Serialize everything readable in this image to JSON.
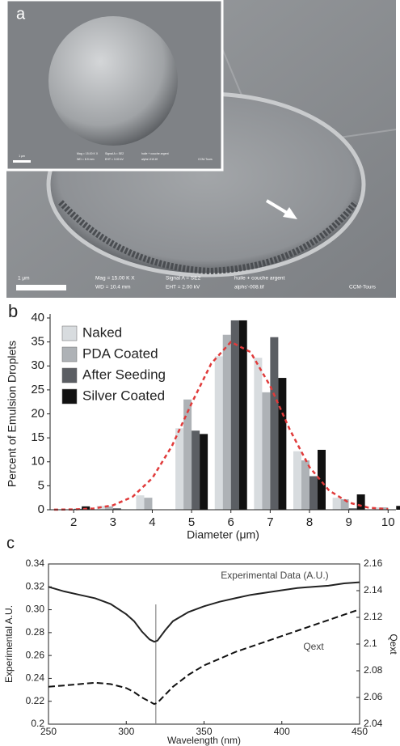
{
  "image_panel": {
    "label": "a",
    "scale_bar": "1 μm",
    "info": [
      "Mag = 15.00 K X",
      "WD = 10.4 mm",
      "Signal A = SE2",
      "EHT = 2.00 kV",
      "huile + couche argent",
      "alphs'-008.tif",
      "CCM-Tours"
    ],
    "inset": {
      "scale_bar": "1 μm",
      "info": [
        "Mag = 15.00 K X",
        "WD = 8.9 mm",
        "Signal A = SE2",
        "EHT = 3.00 kV",
        "huile + couche argent",
        "alphs'-010.tif",
        "CCM-Tours"
      ]
    }
  },
  "chart_data": [
    {
      "type": "bar",
      "label": "b",
      "ylabel": "Percent of Emulsion Droplets",
      "xlabel": "Diameter (μm)",
      "x": [
        2,
        3,
        4,
        5,
        6,
        7,
        8,
        9,
        10
      ],
      "series": [
        {
          "name": "Naked",
          "color": "#d8dcdf",
          "values": [
            0,
            0.8,
            3,
            17,
            32,
            31.7,
            12.2,
            2.5,
            0.5
          ]
        },
        {
          "name": "PDA Coated",
          "color": "#aeb2b6",
          "values": [
            0,
            0.7,
            2.5,
            23,
            36.5,
            24.5,
            10.3,
            2.2,
            0.5
          ]
        },
        {
          "name": "After Seeding",
          "color": "#5b5e63",
          "values": [
            0.2,
            0.3,
            0,
            16.5,
            39.5,
            36,
            7,
            0.3,
            0
          ]
        },
        {
          "name": "Silver Coated",
          "color": "#111111",
          "values": [
            0.7,
            0,
            0,
            15.8,
            39.5,
            27.5,
            12.5,
            3.2,
            0.8
          ]
        }
      ],
      "fit": {
        "color": "#e03a3a",
        "x": [
          1.5,
          2,
          2.5,
          3,
          3.5,
          4,
          4.5,
          5,
          5.5,
          6,
          6.5,
          7,
          7.5,
          8,
          8.5,
          9,
          9.5,
          10
        ],
        "values": [
          0.01,
          0.06,
          0.26,
          0.93,
          2.7,
          6.6,
          13.3,
          22.2,
          30.5,
          35,
          32.9,
          25.8,
          16.7,
          8.9,
          4,
          1.5,
          0.44,
          0.11
        ]
      },
      "xlim": [
        1.4,
        10.2
      ],
      "xticks": [
        2,
        3,
        4,
        5,
        6,
        7,
        8,
        9,
        10
      ],
      "ylim": [
        0,
        40
      ],
      "yticks": [
        0,
        5,
        10,
        15,
        20,
        25,
        30,
        35,
        40
      ],
      "legend": "top-left"
    },
    {
      "type": "line",
      "label": "c",
      "ylabel": "Experimental A.U.",
      "y2label": "Qext",
      "xlabel": "Wavelength (nm)",
      "x": [
        250,
        260,
        270,
        280,
        290,
        300,
        305,
        310,
        315,
        318,
        320,
        325,
        330,
        340,
        350,
        360,
        370,
        380,
        390,
        400,
        410,
        420,
        430,
        440,
        450
      ],
      "series": [
        {
          "name": "Experimental Data (A.U.)",
          "color": "#222222",
          "dash": false,
          "axis": "y",
          "values": [
            0.32,
            0.316,
            0.313,
            0.31,
            0.305,
            0.296,
            0.29,
            0.281,
            0.274,
            0.272,
            0.273,
            0.282,
            0.29,
            0.298,
            0.303,
            0.307,
            0.31,
            0.313,
            0.315,
            0.317,
            0.319,
            0.32,
            0.321,
            0.323,
            0.324
          ]
        },
        {
          "name": "Qext",
          "color": "#111111",
          "dash": true,
          "axis": "y2",
          "values": [
            2.068,
            2.069,
            2.07,
            2.071,
            2.07,
            2.067,
            2.064,
            2.06,
            2.057,
            2.055,
            2.056,
            2.062,
            2.068,
            2.077,
            2.084,
            2.089,
            2.094,
            2.098,
            2.102,
            2.106,
            2.11,
            2.114,
            2.118,
            2.122,
            2.126
          ]
        }
      ],
      "vline": 319,
      "xlim": [
        250,
        450
      ],
      "xticks": [
        250,
        300,
        350,
        400,
        450
      ],
      "ylim": [
        0.2,
        0.34
      ],
      "yticks": [
        0.2,
        0.22,
        0.24,
        0.26,
        0.28,
        {
          "value": 0.3,
          "label": "0.30"
        },
        0.32,
        0.34
      ],
      "y2lim": [
        2.04,
        2.16
      ],
      "y2ticks": [
        2.04,
        2.06,
        2.08,
        2.1,
        2.12,
        2.14,
        2.16
      ]
    }
  ]
}
